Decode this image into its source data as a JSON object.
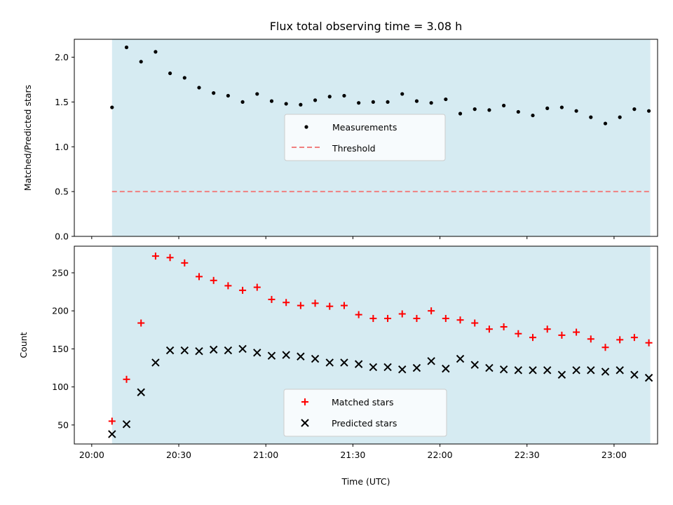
{
  "title": "Flux total observing time = 3.08 h",
  "xlabel": "Time (UTC)",
  "colors": {
    "shade": "#add8e6",
    "threshold": "#f08080",
    "matched": "#ff0000",
    "predicted": "#000000",
    "measurement": "#000000"
  },
  "chart_data": [
    {
      "type": "scatter",
      "name": "ratio",
      "ylabel": "Matched/Predicted stars",
      "ylim": [
        0,
        2.2
      ],
      "yticks": [
        0.0,
        0.5,
        1.0,
        1.5,
        2.0
      ],
      "ytick_labels": [
        "0.0",
        "0.5",
        "1.0",
        "1.5",
        "2.0"
      ],
      "xlim_min": [
        -6.0,
        195.0
      ],
      "shaded_span_min": [
        7.0,
        192.5
      ],
      "threshold": 0.5,
      "legend": {
        "position": "center",
        "items": [
          "Measurements",
          "Threshold"
        ]
      },
      "series": [
        {
          "name": "Measurements",
          "marker": "dot",
          "x_min": [
            7,
            12,
            17,
            22,
            27,
            32,
            37,
            42,
            47,
            52,
            57,
            62,
            67,
            72,
            77,
            82,
            87,
            92,
            97,
            102,
            107,
            112,
            117,
            122,
            127,
            132,
            137,
            142,
            147,
            152,
            157,
            162,
            167,
            172,
            177,
            182,
            187,
            192
          ],
          "y": [
            1.44,
            2.11,
            1.95,
            2.06,
            1.82,
            1.77,
            1.66,
            1.6,
            1.57,
            1.5,
            1.59,
            1.51,
            1.48,
            1.47,
            1.52,
            1.56,
            1.57,
            1.49,
            1.5,
            1.5,
            1.59,
            1.51,
            1.49,
            1.53,
            1.37,
            1.42,
            1.41,
            1.46,
            1.39,
            1.35,
            1.43,
            1.44,
            1.4,
            1.33,
            1.26,
            1.33,
            1.42,
            1.4
          ]
        }
      ]
    },
    {
      "type": "scatter",
      "name": "counts",
      "ylabel": "Count",
      "ylim": [
        25,
        285
      ],
      "yticks": [
        50,
        100,
        150,
        200,
        250
      ],
      "ytick_labels": [
        "50",
        "100",
        "150",
        "200",
        "250"
      ],
      "xlim_min": [
        -6.0,
        195.0
      ],
      "shaded_span_min": [
        7.0,
        192.5
      ],
      "x_min": [
        0,
        30,
        60,
        90,
        120,
        150,
        180
      ],
      "x_tick_labels": [
        "20:00",
        "20:30",
        "21:00",
        "21:30",
        "22:00",
        "22:30",
        "23:00"
      ],
      "legend": {
        "position": "lower center",
        "items": [
          "Matched stars",
          "Predicted stars"
        ]
      },
      "series": [
        {
          "name": "Matched stars",
          "marker": "plus",
          "x_min": [
            7,
            12,
            17,
            22,
            27,
            32,
            37,
            42,
            47,
            52,
            57,
            62,
            67,
            72,
            77,
            82,
            87,
            92,
            97,
            102,
            107,
            112,
            117,
            122,
            127,
            132,
            137,
            142,
            147,
            152,
            157,
            162,
            167,
            172,
            177,
            182,
            187,
            192
          ],
          "y": [
            55,
            110,
            184,
            272,
            270,
            263,
            245,
            240,
            233,
            227,
            231,
            215,
            211,
            207,
            210,
            206,
            207,
            195,
            190,
            190,
            196,
            190,
            200,
            190,
            188,
            184,
            176,
            179,
            170,
            165,
            176,
            168,
            172,
            163,
            152,
            162,
            165,
            158
          ]
        },
        {
          "name": "Predicted stars",
          "marker": "x",
          "x_min": [
            7,
            12,
            17,
            22,
            27,
            32,
            37,
            42,
            47,
            52,
            57,
            62,
            67,
            72,
            77,
            82,
            87,
            92,
            97,
            102,
            107,
            112,
            117,
            122,
            127,
            132,
            137,
            142,
            147,
            152,
            157,
            162,
            167,
            172,
            177,
            182,
            187,
            192
          ],
          "y": [
            38,
            51,
            93,
            132,
            148,
            148,
            147,
            149,
            148,
            150,
            145,
            141,
            142,
            140,
            137,
            132,
            132,
            130,
            126,
            126,
            123,
            125,
            134,
            124,
            137,
            129,
            125,
            123,
            122,
            122,
            122,
            116,
            122,
            122,
            120,
            122,
            116,
            112
          ]
        }
      ]
    }
  ]
}
